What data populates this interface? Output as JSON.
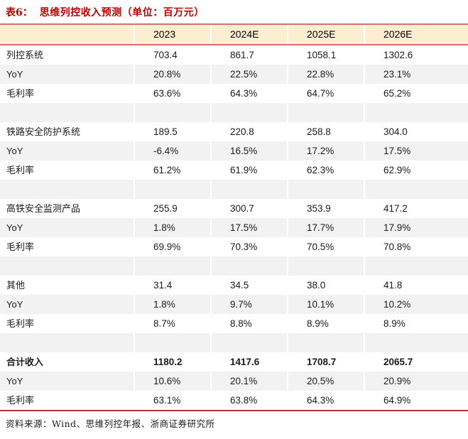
{
  "title": {
    "prefix": "表6：",
    "text": "思维列控收入预测（单位：百万元）"
  },
  "table": {
    "columns": [
      "2023",
      "2024E",
      "2025E",
      "2026E"
    ],
    "rows": [
      {
        "label": "列控系统",
        "values": [
          "703.4",
          "861.7",
          "1058.1",
          "1302.6"
        ],
        "bold": false,
        "blank": false
      },
      {
        "label": "YoY",
        "values": [
          "20.8%",
          "22.5%",
          "22.8%",
          "23.1%"
        ],
        "bold": false,
        "blank": false
      },
      {
        "label": "毛利率",
        "values": [
          "63.6%",
          "64.3%",
          "64.7%",
          "65.2%"
        ],
        "bold": false,
        "blank": false
      },
      {
        "label": "",
        "values": [
          "",
          "",
          "",
          ""
        ],
        "bold": false,
        "blank": true
      },
      {
        "label": "铁路安全防护系统",
        "values": [
          "189.5",
          "220.8",
          "258.8",
          "304.0"
        ],
        "bold": false,
        "blank": false
      },
      {
        "label": "YoY",
        "values": [
          "-6.4%",
          "16.5%",
          "17.2%",
          "17.5%"
        ],
        "bold": false,
        "blank": false
      },
      {
        "label": "毛利率",
        "values": [
          "61.2%",
          "61.9%",
          "62.3%",
          "62.9%"
        ],
        "bold": false,
        "blank": false
      },
      {
        "label": "",
        "values": [
          "",
          "",
          "",
          ""
        ],
        "bold": false,
        "blank": true
      },
      {
        "label": "高铁安全监测产品",
        "values": [
          "255.9",
          "300.7",
          "353.9",
          "417.2"
        ],
        "bold": false,
        "blank": false
      },
      {
        "label": "YoY",
        "values": [
          "1.8%",
          "17.5%",
          "17.7%",
          "17.9%"
        ],
        "bold": false,
        "blank": false
      },
      {
        "label": "毛利率",
        "values": [
          "69.9%",
          "70.3%",
          "70.5%",
          "70.8%"
        ],
        "bold": false,
        "blank": false
      },
      {
        "label": "",
        "values": [
          "",
          "",
          "",
          ""
        ],
        "bold": false,
        "blank": true
      },
      {
        "label": "其他",
        "values": [
          "31.4",
          "34.5",
          "38.0",
          "41.8"
        ],
        "bold": false,
        "blank": false
      },
      {
        "label": "YoY",
        "values": [
          "1.8%",
          "9.7%",
          "10.1%",
          "10.2%"
        ],
        "bold": false,
        "blank": false
      },
      {
        "label": "毛利率",
        "values": [
          "8.7%",
          "8.8%",
          "8.9%",
          "8.9%"
        ],
        "bold": false,
        "blank": false
      },
      {
        "label": "",
        "values": [
          "",
          "",
          "",
          ""
        ],
        "bold": false,
        "blank": true
      },
      {
        "label": "合计收入",
        "values": [
          "1180.2",
          "1417.6",
          "1708.7",
          "2065.7"
        ],
        "bold": true,
        "blank": false
      },
      {
        "label": "YoY",
        "values": [
          "10.6%",
          "20.1%",
          "20.5%",
          "20.9%"
        ],
        "bold": false,
        "blank": false
      },
      {
        "label": "毛利率",
        "values": [
          "63.1%",
          "63.8%",
          "64.3%",
          "64.9%"
        ],
        "bold": false,
        "blank": false
      }
    ]
  },
  "footer": {
    "source": "资料来源：Wind、思维列控年报、浙商证券研究所"
  },
  "colors": {
    "title_red": "#c00000",
    "header_fill": "#fceed1",
    "header_border": "#d37070",
    "bottom_border": "#b53030",
    "stripe_gray": "#f2f2f2"
  }
}
